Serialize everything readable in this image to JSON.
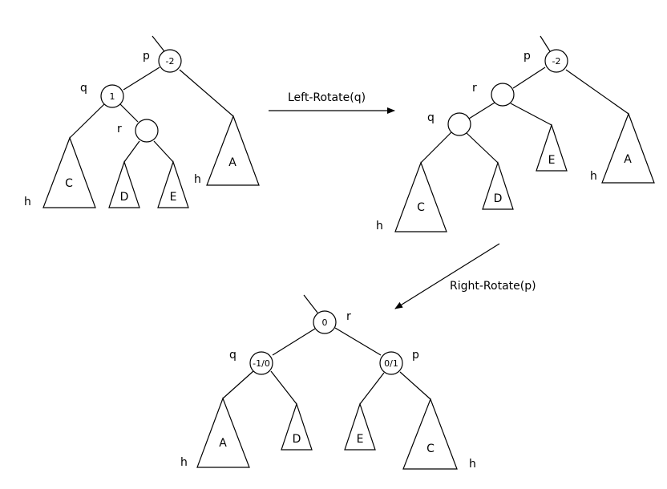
{
  "arrows": {
    "left_rotate": "Left-Rotate(q)",
    "right_rotate": "Right-Rotate(p)"
  },
  "tree1": {
    "p_label": "p",
    "p_value": "-2",
    "q_label": "q",
    "q_value": "1",
    "r_label": "r",
    "r_value": "",
    "subtrees": {
      "C": "C",
      "D": "D",
      "E": "E",
      "A": "A"
    },
    "h_left": "h",
    "h_right": "h"
  },
  "tree2": {
    "p_label": "p",
    "p_value": "-2",
    "r_label": "r",
    "r_value": "",
    "q_label": "q",
    "q_value": "",
    "subtrees": {
      "C": "C",
      "D": "D",
      "E": "E",
      "A": "A"
    },
    "h_left": "h",
    "h_right": "h"
  },
  "tree3": {
    "r_label": "r",
    "r_value": "0",
    "q_label": "q",
    "q_value": "-1/0",
    "p_label": "p",
    "p_value": "0/1",
    "subtrees": {
      "A": "A",
      "D": "D",
      "E": "E",
      "C": "C"
    },
    "h_left": "h",
    "h_right": "h"
  }
}
